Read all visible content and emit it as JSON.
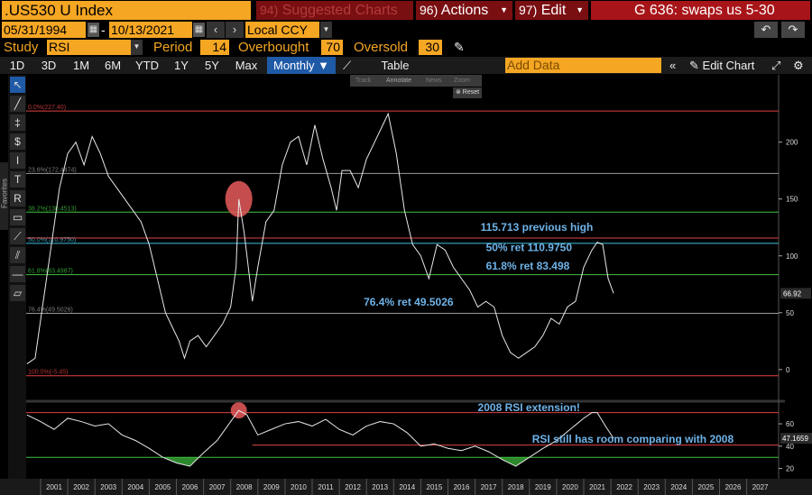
{
  "header": {
    "ticker": ".US530 U Index",
    "menus": [
      {
        "num": "94)",
        "label": "Suggested Charts",
        "dim": true
      },
      {
        "num": "96)",
        "label": "Actions",
        "dim": false
      },
      {
        "num": "97)",
        "label": "Edit",
        "dim": false
      }
    ],
    "title": "G 636: swaps us 5-30"
  },
  "daterange": {
    "start": "05/31/1994",
    "sep": "-",
    "end": "10/13/2021",
    "currency": "Local CCY"
  },
  "study": {
    "study_label": "Study",
    "study_value": "RSI",
    "period_label": "Period",
    "period_value": "14",
    "overbought_label": "Overbought",
    "overbought_value": "70",
    "oversold_label": "Oversold",
    "oversold_value": "30"
  },
  "periods": [
    "1D",
    "3D",
    "1M",
    "6M",
    "YTD",
    "1Y",
    "5Y",
    "Max"
  ],
  "frequency": "Monthly ▼",
  "table_label": "Table",
  "add_data_placeholder": "Add Data",
  "edit_chart_label": "Edit Chart",
  "favorites_label": "Favorites",
  "mini_toolbar": {
    "track": "Track",
    "annotate": "Annotate",
    "news": "News",
    "zoom": "Zoom",
    "reset": "Reset"
  },
  "chart_data": [
    {
      "type": "line",
      "panel": "price",
      "ylim": [
        -12,
        237
      ],
      "y_ticks": [
        0,
        50,
        100,
        150,
        200
      ],
      "last_value_label": "66.92",
      "fib_levels": [
        {
          "label": "0.0%(227.40)",
          "value": 227.4,
          "color": "#e04040"
        },
        {
          "label": "23.6%(172.4474)",
          "value": 172.4474,
          "color": "#999999"
        },
        {
          "label": "38.2%(138.4513)",
          "value": 138.4513,
          "color": "#40c040"
        },
        {
          "label": "50.0%(110.9750)",
          "value": 110.975,
          "color": "#40c0e0"
        },
        {
          "label": "61.8%(83.4987)",
          "value": 83.4987,
          "color": "#40c040"
        },
        {
          "label": "76.4%(49.5026)",
          "value": 49.5026,
          "color": "#999999"
        },
        {
          "label": "100.0%(-5.45)",
          "value": -5.45,
          "color": "#e04040"
        }
      ],
      "previous_high": {
        "value": 115.713
      },
      "annotations": [
        {
          "text": "115.713 previous high",
          "x": 2016.7,
          "y": 122
        },
        {
          "text": "50% ret 110.9750",
          "x": 2016.9,
          "y": 104
        },
        {
          "text": "61.8% ret 83.498",
          "x": 2016.9,
          "y": 88
        },
        {
          "text": "76.4% ret 49.5026",
          "x": 2012.4,
          "y": 56
        }
      ],
      "highlight": {
        "x": 2007.8,
        "y": 150
      },
      "series": [
        {
          "x": [
            2000.0,
            2000.3,
            2000.6,
            2000.9,
            2001.2,
            2001.5,
            2001.8,
            2002.1,
            2002.4,
            2002.7,
            2003.0,
            2003.3,
            2003.6,
            2003.9,
            2004.2,
            2004.5,
            2004.8,
            2005.1,
            2005.4,
            2005.6,
            2005.8,
            2006.0,
            2006.3,
            2006.6,
            2006.9,
            2007.2,
            2007.5,
            2007.7,
            2007.8,
            2008.0,
            2008.3,
            2008.5,
            2008.8,
            2009.1,
            2009.4,
            2009.7,
            2010.0,
            2010.3,
            2010.6,
            2010.9,
            2011.2,
            2011.4,
            2011.6,
            2011.9,
            2012.2,
            2012.5,
            2012.8,
            2013.1,
            2013.3,
            2013.6,
            2013.9,
            2014.2,
            2014.5,
            2014.8,
            2015.1,
            2015.4,
            2015.7,
            2016.0,
            2016.3,
            2016.6,
            2016.9,
            2017.2,
            2017.5,
            2017.8,
            2018.1,
            2018.4,
            2018.7,
            2019.0,
            2019.3,
            2019.6,
            2019.9,
            2020.2,
            2020.5,
            2020.8,
            2021.0,
            2021.2,
            2021.4,
            2021.6
          ],
          "y": [
            5,
            10,
            60,
            110,
            160,
            190,
            200,
            180,
            205,
            190,
            170,
            160,
            150,
            140,
            130,
            110,
            80,
            50,
            35,
            25,
            10,
            25,
            30,
            20,
            30,
            40,
            55,
            90,
            150,
            120,
            60,
            90,
            130,
            140,
            180,
            200,
            205,
            180,
            215,
            185,
            160,
            140,
            175,
            175,
            160,
            185,
            200,
            215,
            225,
            190,
            140,
            110,
            100,
            80,
            110,
            105,
            90,
            80,
            70,
            55,
            60,
            55,
            30,
            15,
            10,
            15,
            20,
            30,
            45,
            40,
            55,
            60,
            90,
            105,
            112,
            110,
            80,
            67
          ]
        }
      ]
    },
    {
      "type": "line",
      "panel": "rsi",
      "ylim": [
        14,
        77
      ],
      "y_ticks": [
        20,
        40,
        60
      ],
      "overbought": 70,
      "oversold": 30,
      "horizontal_line": 41,
      "last_value_label": "47.1659",
      "highlight": {
        "x": 2007.8,
        "y": 72
      },
      "annotations": [
        {
          "text": "2008 RSI extension!",
          "x": 2016.6,
          "y": 71.5
        },
        {
          "text": "RSI still has room comparing with 2008",
          "x": 2018.6,
          "y": 43
        }
      ],
      "series": [
        {
          "x": [
            2000.0,
            2000.5,
            2001.0,
            2001.5,
            2002.0,
            2002.5,
            2003.0,
            2003.5,
            2004.0,
            2004.5,
            2005.0,
            2005.5,
            2006.0,
            2006.5,
            2007.0,
            2007.5,
            2007.8,
            2008.1,
            2008.5,
            2009.0,
            2009.5,
            2010.0,
            2010.5,
            2011.0,
            2011.5,
            2012.0,
            2012.5,
            2013.0,
            2013.5,
            2014.0,
            2014.5,
            2015.0,
            2015.5,
            2016.0,
            2016.5,
            2017.0,
            2017.5,
            2018.0,
            2018.5,
            2019.0,
            2019.5,
            2020.0,
            2020.5,
            2020.8,
            2021.0,
            2021.3,
            2021.6
          ],
          "y": [
            68,
            62,
            55,
            65,
            62,
            58,
            60,
            50,
            45,
            38,
            30,
            25,
            22,
            34,
            45,
            62,
            72,
            68,
            50,
            55,
            60,
            62,
            58,
            64,
            55,
            50,
            58,
            62,
            60,
            52,
            40,
            42,
            38,
            36,
            40,
            35,
            28,
            22,
            30,
            38,
            45,
            55,
            65,
            70,
            70,
            58,
            47
          ]
        }
      ]
    }
  ],
  "x_axis": {
    "labels": [
      "2001",
      "2002",
      "2003",
      "2004",
      "2005",
      "2006",
      "2007",
      "2008",
      "2009",
      "2010",
      "2011",
      "2012",
      "2013",
      "2014",
      "2015",
      "2016",
      "2017",
      "2018",
      "2019",
      "2020",
      "2021",
      "2022",
      "2023",
      "2024",
      "2025",
      "2026",
      "2027"
    ]
  },
  "colors": {
    "accent_orange": "#f5a623",
    "menu_red": "#7a0f12",
    "title_red": "#a81519",
    "active_blue": "#1f5aa6",
    "annotation_blue": "#6fb3e8"
  }
}
